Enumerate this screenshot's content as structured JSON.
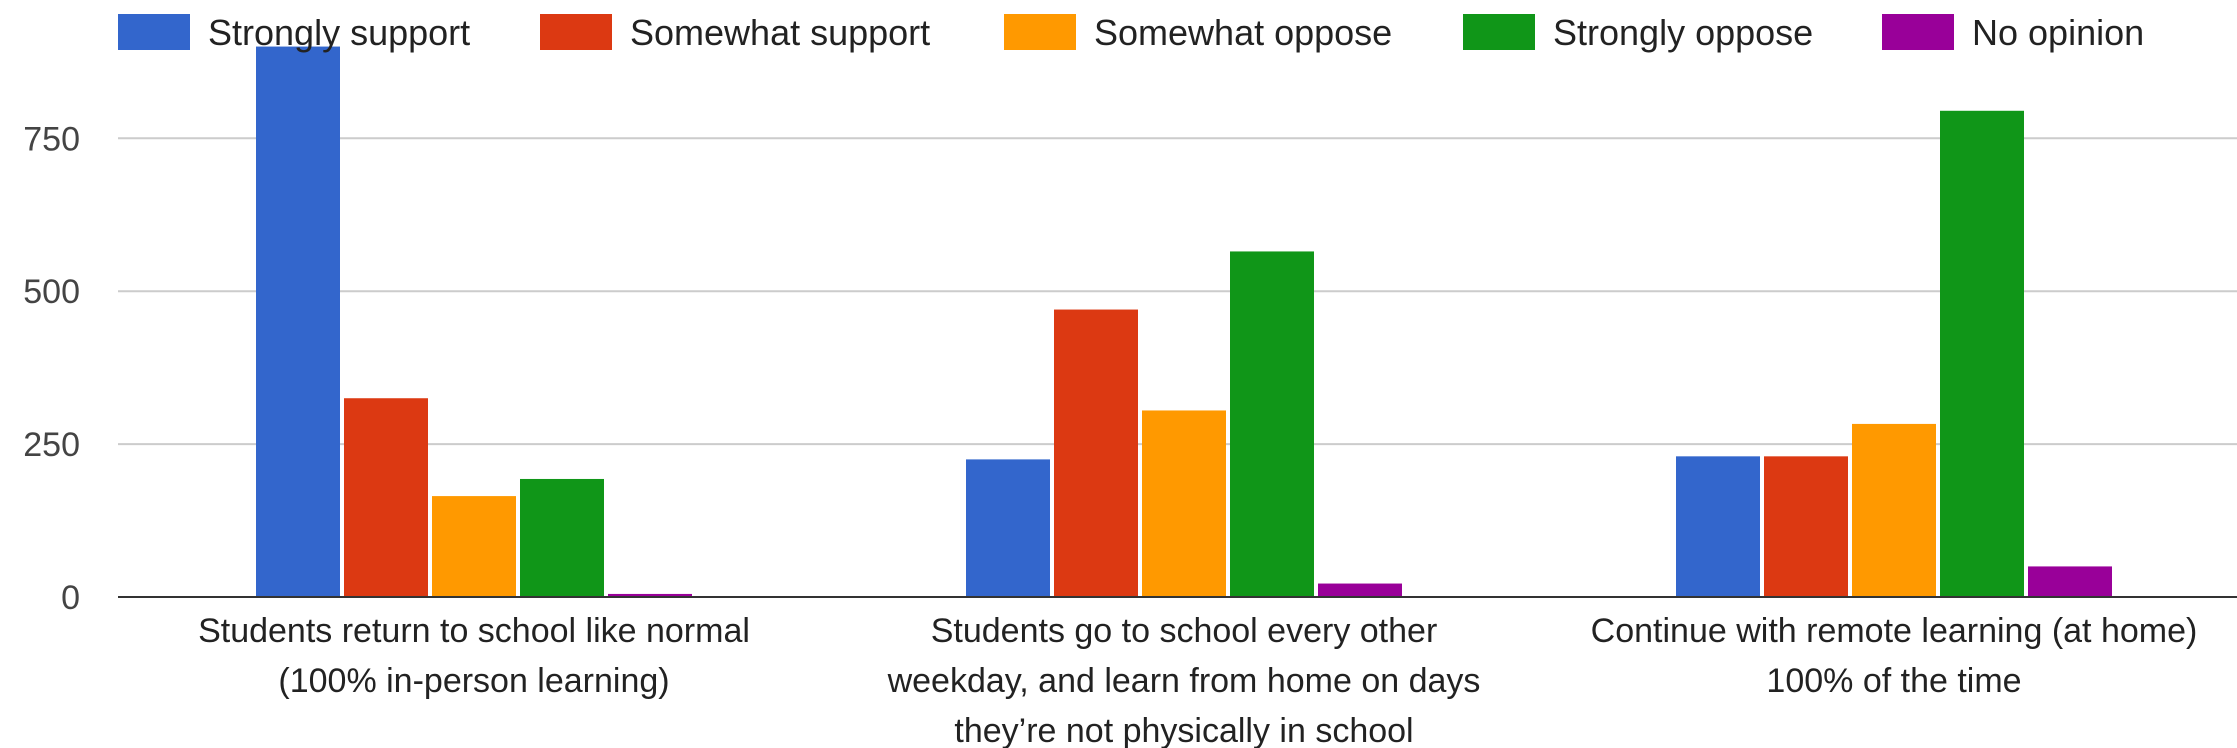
{
  "chart_data": {
    "type": "bar",
    "categories": [
      [
        "Students return to school like normal",
        "(100% in-person learning)"
      ],
      [
        "Students go to school every other",
        "weekday, and learn from home on days",
        "they’re not physically in school"
      ],
      [
        "Continue with remote learning (at home)",
        "100% of the time"
      ]
    ],
    "series": [
      {
        "name": "Strongly support",
        "color": "#3366cc",
        "values": [
          900,
          225,
          230
        ]
      },
      {
        "name": "Somewhat support",
        "color": "#dc3912",
        "values": [
          325,
          470,
          230
        ]
      },
      {
        "name": "Somewhat oppose",
        "color": "#ff9900",
        "values": [
          165,
          305,
          283
        ]
      },
      {
        "name": "Strongly oppose",
        "color": "#109618",
        "values": [
          193,
          565,
          795
        ]
      },
      {
        "name": "No opinion",
        "color": "#990099",
        "values": [
          5,
          22,
          50
        ]
      }
    ],
    "yticks": [
      0,
      250,
      500,
      750
    ],
    "ylim": [
      0,
      900
    ],
    "grid": true,
    "legend_position": "top",
    "xlabel": "",
    "ylabel": ""
  }
}
